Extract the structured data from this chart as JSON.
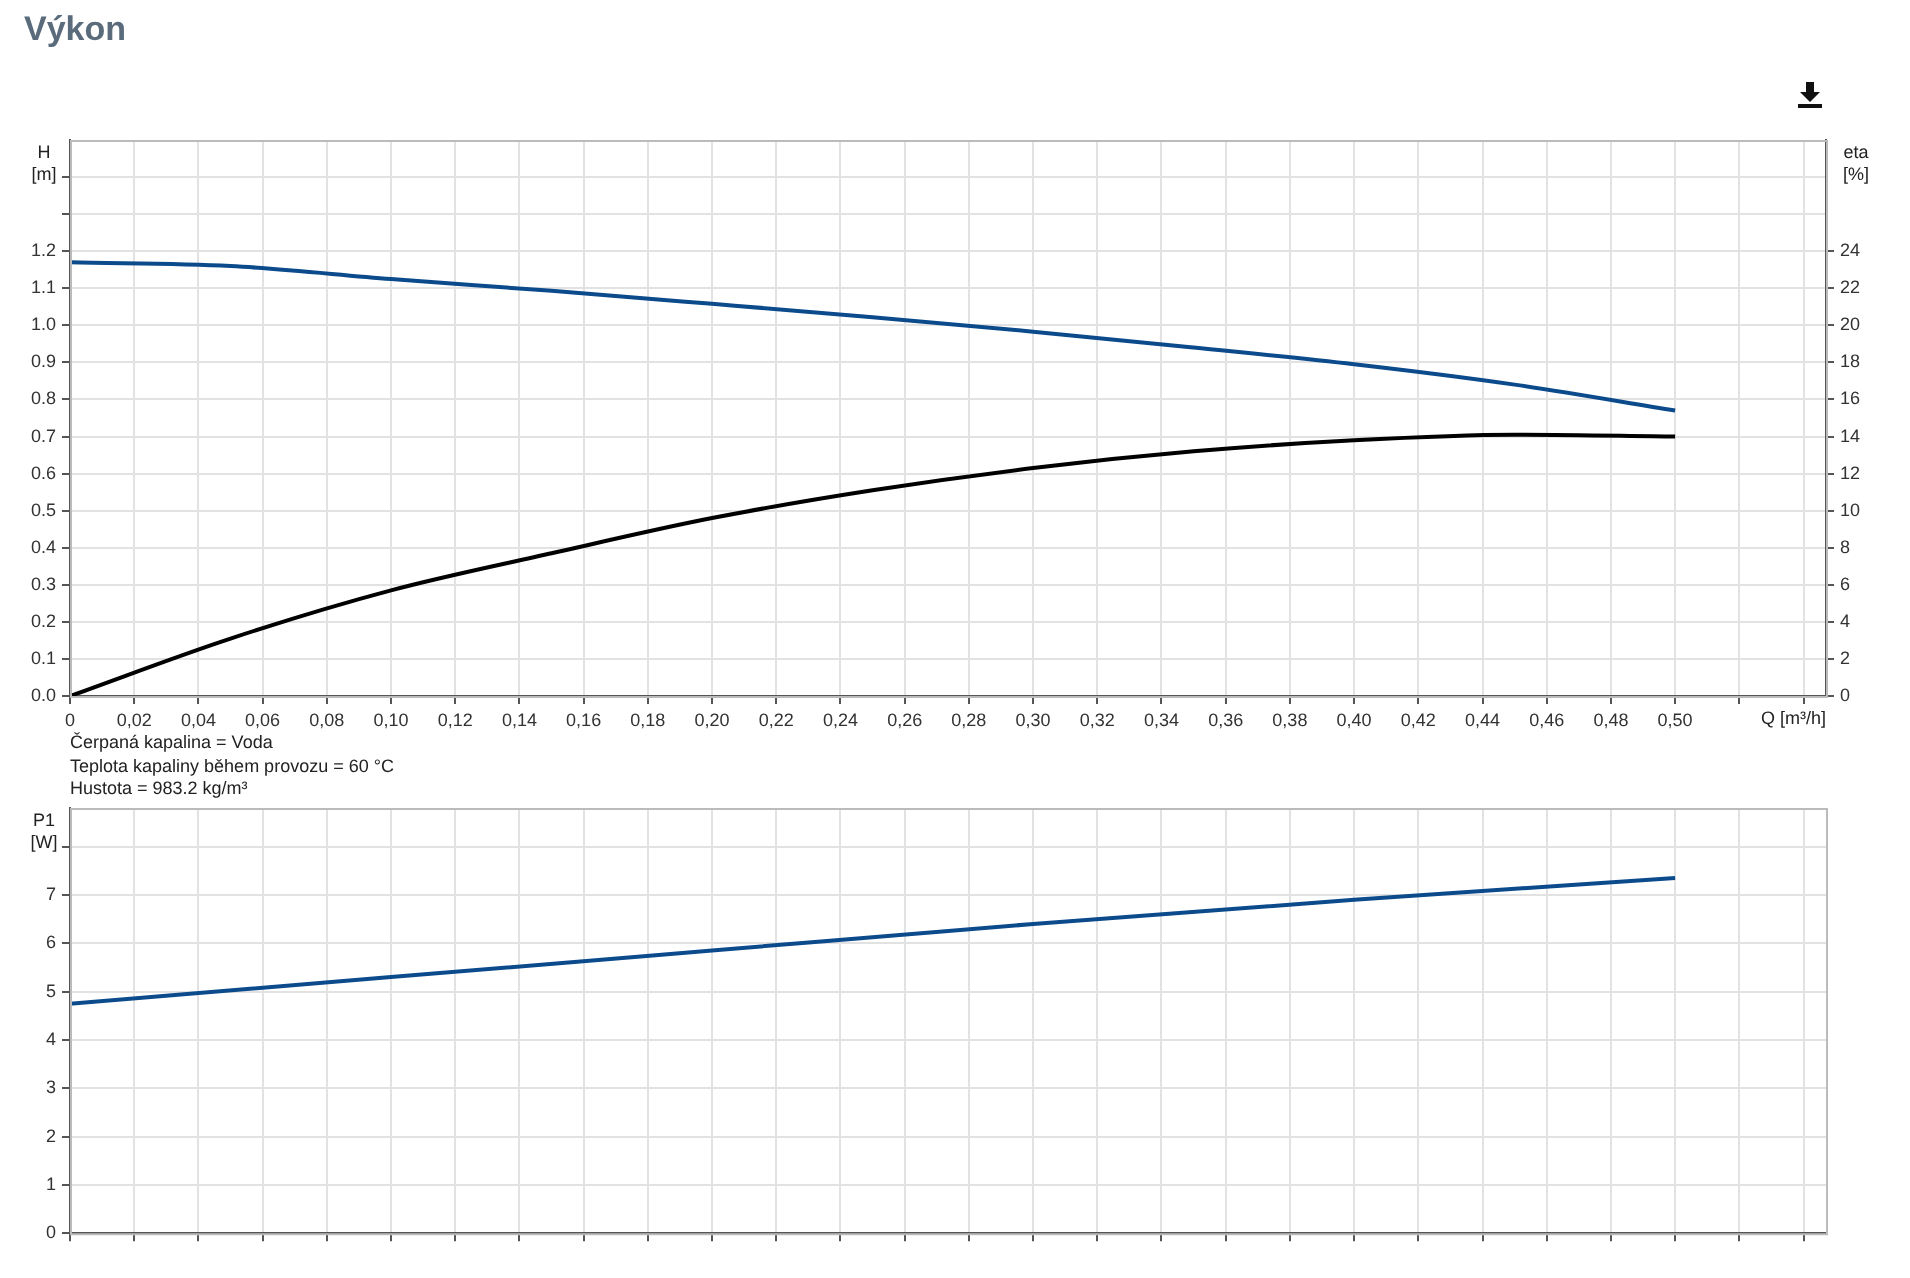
{
  "chart_data": [
    {
      "type": "line",
      "title": "Výkon",
      "xlabel": "Q [m³/h]",
      "ylabel": "H [m]",
      "y2label": "eta [%]",
      "xlim": [
        0,
        0.547
      ],
      "xticks": [
        0,
        {
          "value": 0.02,
          "label": "0,02"
        },
        {
          "value": 0.04,
          "label": "0,04"
        },
        {
          "value": 0.06,
          "label": "0,06"
        },
        {
          "value": 0.08,
          "label": "0,08"
        },
        {
          "value": 0.1,
          "label": "0,10"
        },
        {
          "value": 0.12,
          "label": "0,12"
        },
        {
          "value": 0.14,
          "label": "0,14"
        },
        {
          "value": 0.16,
          "label": "0,16"
        },
        {
          "value": 0.18,
          "label": "0,18"
        },
        {
          "value": 0.2,
          "label": "0,20"
        },
        {
          "value": 0.22,
          "label": "0,22"
        },
        {
          "value": 0.24,
          "label": "0,24"
        },
        {
          "value": 0.26,
          "label": "0,26"
        },
        {
          "value": 0.28,
          "label": "0,28"
        },
        {
          "value": 0.3,
          "label": "0,30"
        },
        {
          "value": 0.32,
          "label": "0,32"
        },
        {
          "value": 0.34,
          "label": "0,34"
        },
        {
          "value": 0.36,
          "label": "0,36"
        },
        {
          "value": 0.38,
          "label": "0,38"
        },
        {
          "value": 0.4,
          "label": "0,40"
        },
        {
          "value": 0.42,
          "label": "0,42"
        },
        {
          "value": 0.44,
          "label": "0,44"
        },
        {
          "value": 0.46,
          "label": "0,46"
        },
        {
          "value": 0.48,
          "label": "0,48"
        },
        {
          "value": 0.5,
          "label": "0,50"
        },
        {
          "value": 0.52,
          "label": null
        },
        {
          "value": 0.54,
          "label": null
        }
      ],
      "ylim": [
        0,
        1.5
      ],
      "yticks": [
        {
          "value": 0,
          "label": "0.0"
        },
        0.1,
        0.2,
        0.3,
        0.4,
        0.5,
        0.6,
        0.7,
        0.8,
        0.9,
        {
          "value": 1,
          "label": "1.0"
        },
        1.1,
        1.2,
        {
          "value": 1.3,
          "label": null
        },
        {
          "value": 1.4,
          "label": null
        }
      ],
      "y2lim": [
        0,
        30
      ],
      "y2ticks": [
        0,
        2,
        4,
        6,
        8,
        10,
        12,
        14,
        16,
        18,
        20,
        22,
        24
      ],
      "grid": true,
      "legend": false,
      "x": [
        0,
        0.05,
        0.1,
        0.15,
        0.2,
        0.25,
        0.3,
        0.35,
        0.4,
        0.45,
        0.5
      ],
      "series": [
        {
          "color": "#0b4a8b",
          "values": [
            1.17,
            1.16,
            1.125,
            1.093,
            1.058,
            1.022,
            0.983,
            0.94,
            0.895,
            0.84,
            0.77
          ]
        },
        {
          "color": "#000000",
          "axis": "y2",
          "values": [
            0,
            3.1,
            5.7,
            7.7,
            9.6,
            11.1,
            12.3,
            13.2,
            13.8,
            14.1,
            14.0
          ]
        }
      ],
      "annotations": [
        "Čerpaná kapalina = Voda",
        "Teplota kapaliny během provozu = 60 °C",
        "Hustota = 983.2 kg/m³"
      ]
    },
    {
      "type": "line",
      "ylabel": "P1 [W]",
      "tick_labels": "y",
      "xlim": [
        0,
        0.547
      ],
      "xticks": [
        0,
        0.02,
        0.04,
        0.06,
        0.08,
        0.1,
        0.12,
        0.14,
        0.16,
        0.18,
        0.2,
        0.22,
        0.24,
        0.26,
        0.28,
        0.3,
        0.32,
        0.34,
        0.36,
        0.38,
        0.4,
        0.42,
        0.44,
        0.46,
        0.48,
        0.5,
        0.52,
        0.54
      ],
      "ylim": [
        0,
        8.8
      ],
      "yticks": [
        0,
        1,
        2,
        3,
        4,
        5,
        6,
        7,
        {
          "value": 8,
          "label": null
        }
      ],
      "grid": true,
      "legend": false,
      "x": [
        0,
        0.1,
        0.2,
        0.3,
        0.4,
        0.5
      ],
      "series": [
        {
          "color": "#0b4a8b",
          "values": [
            4.75,
            5.3,
            5.85,
            6.4,
            6.9,
            7.35
          ]
        }
      ]
    }
  ]
}
